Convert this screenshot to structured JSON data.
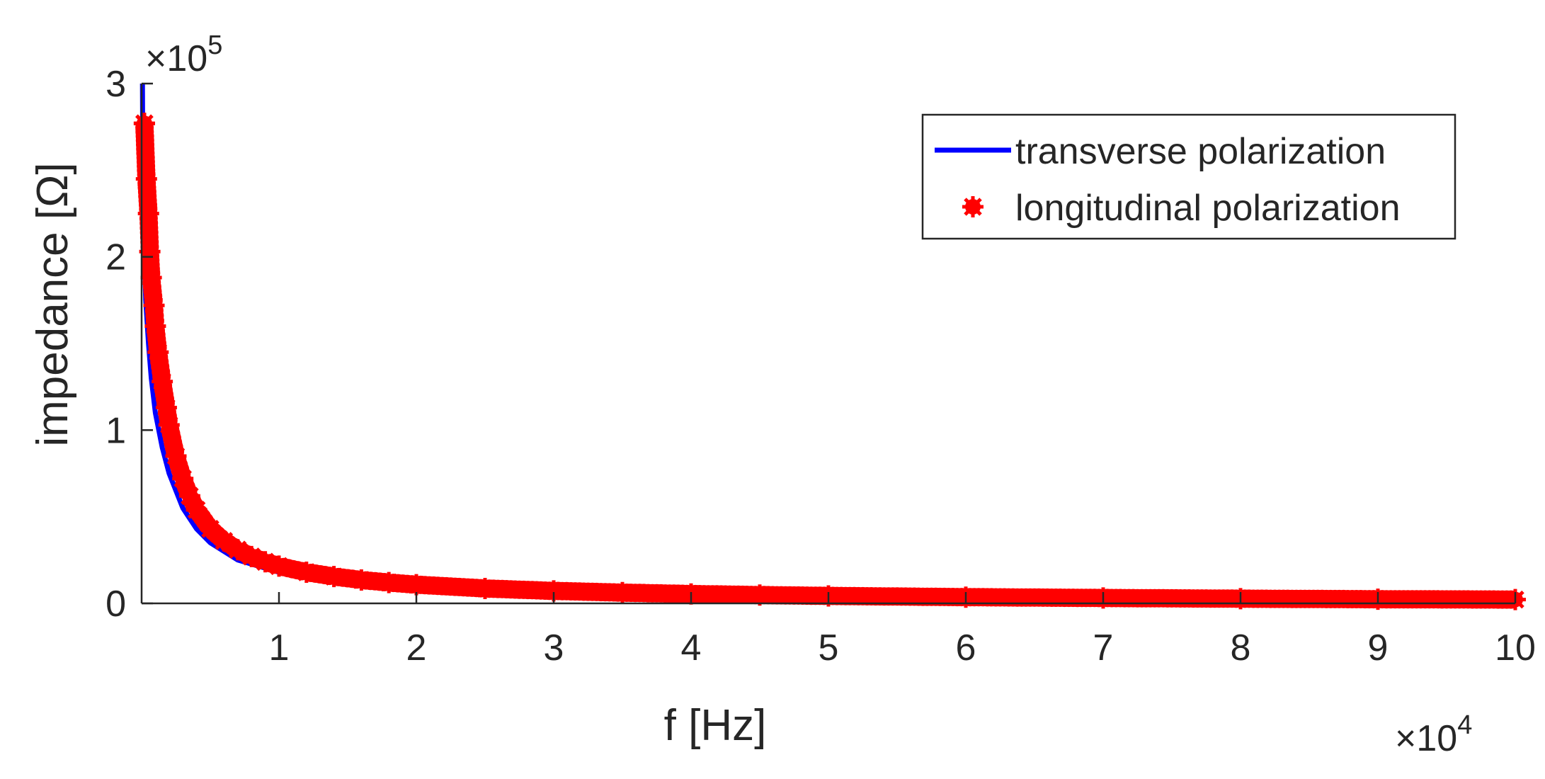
{
  "chart_data": {
    "type": "line",
    "title": "",
    "xlabel": "f [Hz]",
    "ylabel": "impedance [Ω]",
    "x_multiplier": "×10",
    "x_multiplier_exp": "4",
    "y_multiplier": "×10",
    "y_multiplier_exp": "5",
    "xlim": [
      0,
      100000
    ],
    "ylim": [
      0,
      300000
    ],
    "x_ticks": [
      10000,
      20000,
      30000,
      40000,
      50000,
      60000,
      70000,
      80000,
      90000,
      100000
    ],
    "x_tick_labels": [
      "1",
      "2",
      "3",
      "4",
      "5",
      "6",
      "7",
      "8",
      "9",
      "10"
    ],
    "y_ticks": [
      0,
      100000,
      200000,
      300000
    ],
    "y_tick_labels": [
      "0",
      "1",
      "2",
      "3"
    ],
    "grid": false,
    "legend_position": "top-right",
    "series": [
      {
        "name": "transverse polarization",
        "style": "line",
        "color": "#0000ff",
        "x": [
          62,
          100,
          200,
          300,
          500,
          700,
          1000,
          1500,
          2000,
          3000,
          4000,
          5000,
          7000,
          10000,
          15000,
          20000,
          30000,
          40000,
          50000,
          60000,
          70000,
          80000,
          90000,
          100000
        ],
        "y": [
          300000,
          230000,
          200000,
          175000,
          150000,
          130000,
          110000,
          90000,
          75000,
          55000,
          43000,
          35000,
          25000,
          18000,
          12000,
          9000,
          6000,
          4500,
          3600,
          3000,
          2600,
          2200,
          2000,
          1800
        ]
      },
      {
        "name": "longitudinal polarization",
        "style": "markers",
        "color": "#ff0000",
        "x": [
          200,
          200,
          350,
          500,
          600,
          700,
          900,
          1000,
          1200,
          1500,
          1800,
          2000,
          2500,
          3000,
          3500,
          4000,
          5000,
          6000,
          7000,
          8000,
          9000,
          10000,
          12000,
          14000,
          16000,
          18000,
          20000,
          25000,
          30000,
          35000,
          40000,
          45000,
          50000,
          60000,
          70000,
          80000,
          90000,
          100000
        ],
        "y": [
          277000,
          277000,
          245000,
          225000,
          203000,
          188000,
          172000,
          160000,
          145000,
          128000,
          113000,
          103000,
          85000,
          72000,
          62000,
          54000,
          43000,
          36000,
          31000,
          27000,
          24000,
          21500,
          18000,
          15500,
          13500,
          12000,
          10800,
          8600,
          7200,
          6200,
          5400,
          4800,
          4300,
          3600,
          3100,
          2700,
          2400,
          2200
        ]
      }
    ]
  }
}
